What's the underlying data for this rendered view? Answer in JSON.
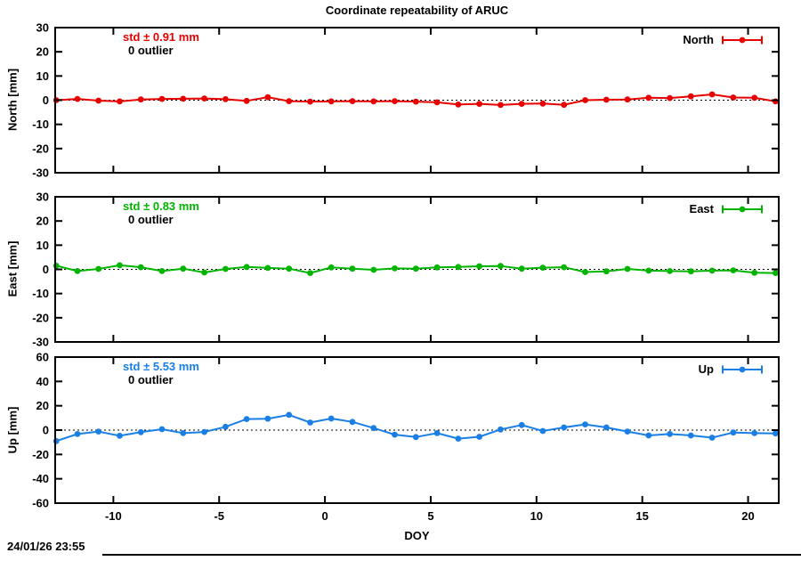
{
  "footer": {
    "timestamp": "24/01/26 23:55"
  },
  "chart_data": {
    "type": "line",
    "title": "Coordinate repeatability of ARUC",
    "xlabel": "DOY",
    "xlim": [
      -12.75,
      21.45
    ],
    "xticks": [
      -10,
      -5,
      0,
      5,
      10,
      15,
      20
    ],
    "grid": "zero-line-only",
    "legend_position": "top-right-inside",
    "x": [
      -12.7,
      -11.7,
      -10.7,
      -9.7,
      -8.7,
      -7.7,
      -6.7,
      -5.7,
      -4.7,
      -3.7,
      -2.7,
      -1.7,
      -0.7,
      0.3,
      1.3,
      2.3,
      3.3,
      4.3,
      5.3,
      6.3,
      7.3,
      8.3,
      9.3,
      10.3,
      11.3,
      12.3,
      13.3,
      14.3,
      15.3,
      16.3,
      17.3,
      18.3,
      19.3,
      20.3,
      21.3
    ],
    "panels": [
      {
        "id": "north",
        "legend": "North",
        "ylabel": "North [mm]",
        "std_label": "std ± 0.91 mm",
        "outlier_label": "0 outlier",
        "color": "#e80000",
        "ylim": [
          -30,
          30
        ],
        "yticks": [
          30,
          20,
          10,
          0,
          -10,
          -20,
          -30
        ],
        "values": [
          0.0,
          0.5,
          -0.2,
          -0.5,
          0.3,
          0.5,
          0.6,
          0.7,
          0.4,
          -0.3,
          1.2,
          -0.4,
          -0.6,
          -0.5,
          -0.4,
          -0.5,
          -0.4,
          -0.6,
          -0.9,
          -1.8,
          -1.5,
          -2.0,
          -1.5,
          -1.4,
          -1.9,
          0.0,
          0.2,
          0.3,
          1.0,
          0.9,
          1.6,
          2.4,
          1.1,
          1.0,
          -0.5
        ]
      },
      {
        "id": "east",
        "legend": "East",
        "ylabel": "East [mm]",
        "std_label": "std ± 0.83 mm",
        "outlier_label": "0 outlier",
        "color": "#00b400",
        "ylim": [
          -30,
          30
        ],
        "yticks": [
          30,
          20,
          10,
          0,
          -10,
          -20,
          -30
        ],
        "values": [
          1.5,
          -0.7,
          0.2,
          1.7,
          0.9,
          -0.7,
          0.3,
          -1.3,
          0.2,
          1.0,
          0.6,
          0.3,
          -1.5,
          0.8,
          0.3,
          -0.2,
          0.4,
          0.3,
          0.8,
          1.0,
          1.3,
          1.4,
          0.3,
          0.7,
          0.9,
          -1.1,
          -0.8,
          0.2,
          -0.5,
          -0.7,
          -0.8,
          -0.5,
          -0.4,
          -1.4,
          -1.5
        ]
      },
      {
        "id": "up",
        "legend": "Up",
        "ylabel": "Up [mm]",
        "std_label": "std ± 5.53 mm",
        "outlier_label": "0 outlier",
        "color": "#1a7fe4",
        "ylim": [
          -60,
          60
        ],
        "yticks": [
          60,
          40,
          20,
          0,
          -20,
          -40,
          -60
        ],
        "values": [
          -9.0,
          -3.2,
          -1.2,
          -4.7,
          -1.7,
          0.7,
          -2.5,
          -1.5,
          2.7,
          9.1,
          9.4,
          12.5,
          6.2,
          9.5,
          6.7,
          1.7,
          -3.7,
          -5.7,
          -2.5,
          -7.0,
          -5.5,
          0.5,
          4.2,
          -0.7,
          2.2,
          4.7,
          2.2,
          -1.2,
          -4.4,
          -3.2,
          -4.4,
          -6.2,
          -2.0,
          -2.5,
          -2.7
        ]
      }
    ]
  }
}
